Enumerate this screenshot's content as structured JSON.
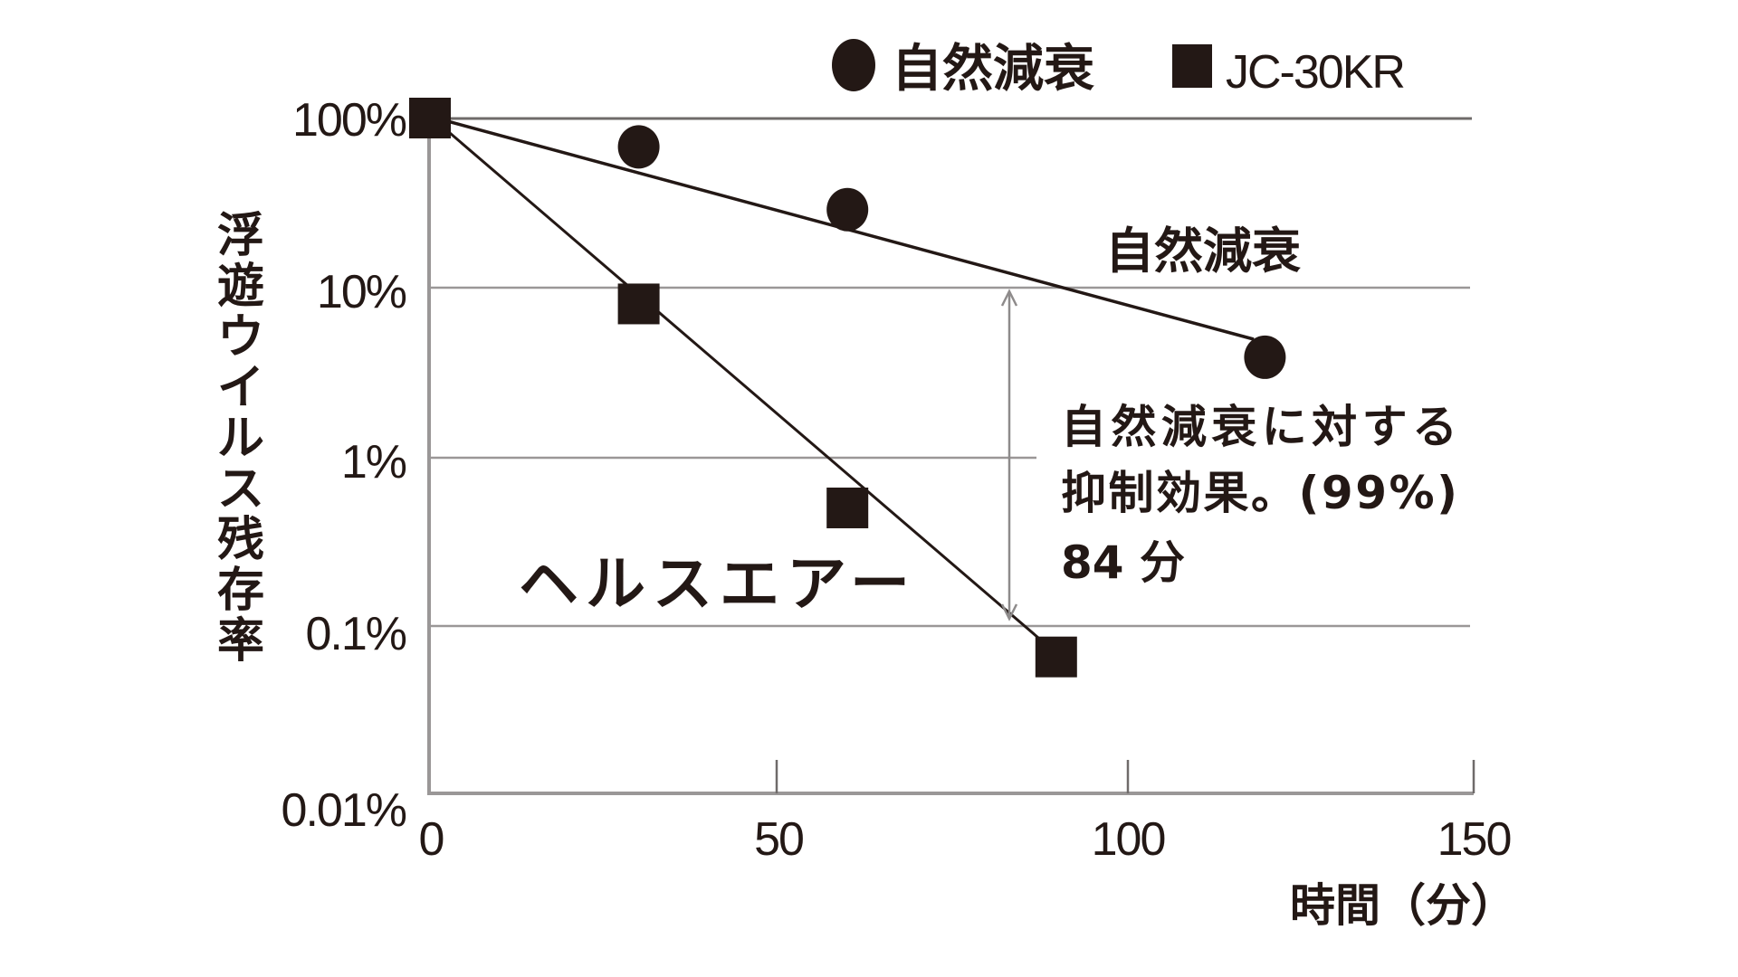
{
  "chart_data": {
    "type": "scatter",
    "title": "",
    "xlabel": "時間（分）",
    "ylabel": "浮遊ウイルス残存率",
    "xlim": [
      0,
      150
    ],
    "ylim": [
      0.01,
      100
    ],
    "yscale": "log",
    "x_ticks": [
      "0",
      "50",
      "100",
      "150"
    ],
    "y_ticks": [
      "100%",
      "10%",
      "1%",
      "0.1%",
      "0.01%"
    ],
    "grid": "horizontal at 100%, 10%, 1%, 0.1%",
    "legend": {
      "position": "top-right",
      "entries": [
        "自然減衰",
        "JC-30KR"
      ]
    },
    "series": [
      {
        "name": "自然減衰",
        "marker": "circle",
        "x": [
          0,
          30,
          60,
          120
        ],
        "values": [
          100,
          68,
          29,
          3.9
        ],
        "trend_line": {
          "from": [
            0,
            100
          ],
          "to": [
            120,
            5
          ]
        }
      },
      {
        "name": "JC-30KR",
        "marker": "square",
        "x": [
          0,
          30,
          60,
          90
        ],
        "values": [
          100,
          8,
          0.5,
          0.066
        ],
        "trend_line": {
          "from": [
            0,
            100
          ],
          "to": [
            90,
            0.066
          ]
        }
      }
    ],
    "annotations": [
      {
        "text": "自然減衰",
        "near": "natural decay line"
      },
      {
        "text": "ヘルスエアー",
        "near": "JC-30KR line"
      },
      {
        "text_lines": [
          "自然減衰に対する",
          "抑制効果。(99%)",
          "84 分"
        ],
        "arrow": {
          "x": 84,
          "from": 10,
          "to": 0.1
        }
      }
    ]
  },
  "legend": {
    "items": [
      {
        "label": "自然減衰",
        "marker": "circle"
      },
      {
        "label": "JC-30KR",
        "marker": "square"
      }
    ]
  },
  "axes": {
    "y_label_chars": [
      "浮",
      "遊",
      "ウ",
      "イ",
      "ル",
      "ス",
      "残",
      "存",
      "率"
    ],
    "y_ticks": [
      "100%",
      "10%",
      "1%",
      "0.1%",
      "0.01%"
    ],
    "x_ticks": [
      "0",
      "50",
      "100",
      "150"
    ],
    "x_label": "時間（分）"
  },
  "annotations": {
    "natural_label": "自然減衰",
    "healthair_label": "ヘルスエアー",
    "effect_line1": "自然減衰に対する",
    "effect_line2": "抑制効果。(99%)",
    "effect_line3": "84 分"
  },
  "colors": {
    "ink": "#231815",
    "grid": "#9a9797",
    "axis": "#9a9797"
  }
}
